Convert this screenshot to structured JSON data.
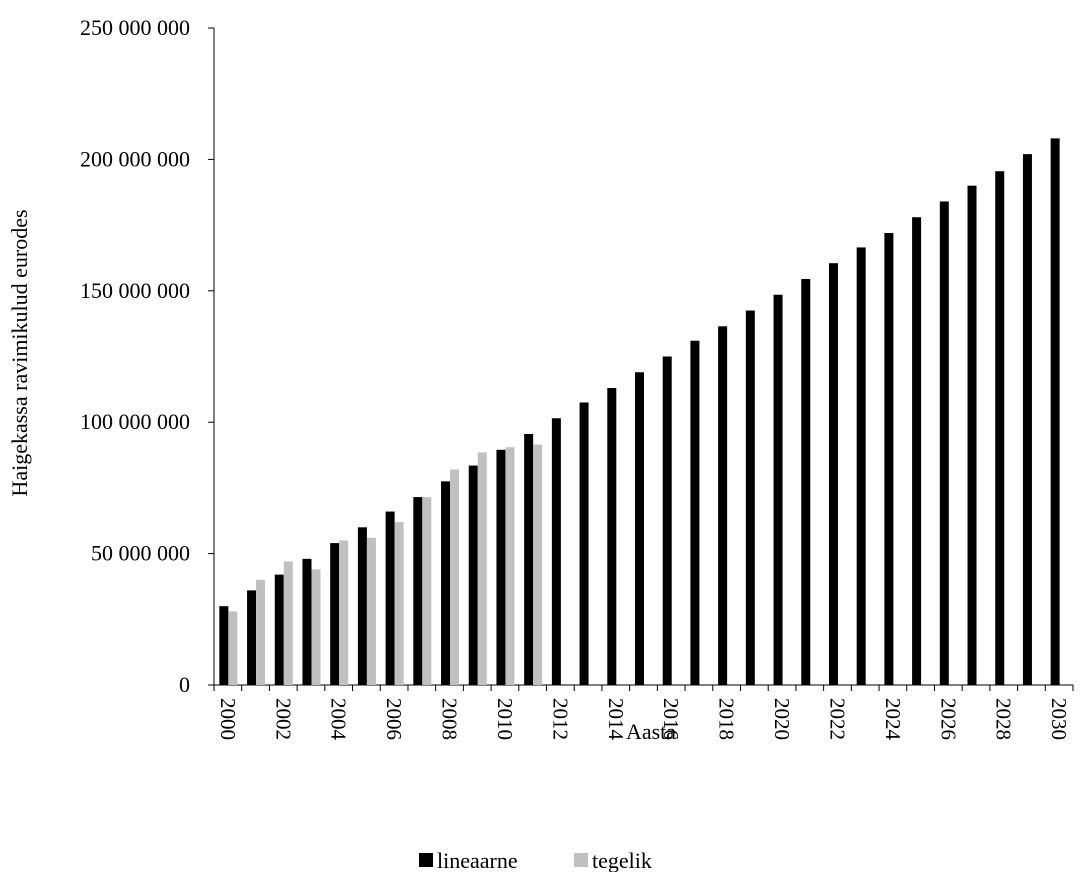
{
  "chart_data": {
    "type": "bar",
    "title": "",
    "xlabel": "Aasta",
    "ylabel": "Haigekassa ravimikulud eurodes",
    "ylim": [
      0,
      250000000
    ],
    "yticks": [
      0,
      50000000,
      100000000,
      150000000,
      200000000,
      250000000
    ],
    "ytick_labels": [
      "0",
      "50 000 000",
      "100 000 000",
      "150 000 000",
      "200 000 000",
      "250 000 000"
    ],
    "categories": [
      2000,
      2001,
      2002,
      2003,
      2004,
      2005,
      2006,
      2007,
      2008,
      2009,
      2010,
      2011,
      2012,
      2013,
      2014,
      2015,
      2016,
      2017,
      2018,
      2019,
      2020,
      2021,
      2022,
      2023,
      2024,
      2025,
      2026,
      2027,
      2028,
      2029,
      2030
    ],
    "xtick_labels": [
      "2000",
      "2002",
      "2004",
      "2006",
      "2008",
      "2010",
      "2012",
      "2014",
      "2016",
      "2018",
      "2020",
      "2022",
      "2024",
      "2026",
      "2028",
      "2030"
    ],
    "series": [
      {
        "name": "lineaarne",
        "color": "#000000",
        "values": [
          30000000,
          36000000,
          42000000,
          48000000,
          54000000,
          60000000,
          66000000,
          71500000,
          77500000,
          83500000,
          89500000,
          95500000,
          101500000,
          107500000,
          113000000,
          119000000,
          125000000,
          131000000,
          136500000,
          142500000,
          148500000,
          154500000,
          160500000,
          166500000,
          172000000,
          178000000,
          184000000,
          190000000,
          195500000,
          202000000,
          208000000
        ]
      },
      {
        "name": "tegelik",
        "color": "#c0c0c0",
        "values": [
          28000000,
          40000000,
          47000000,
          44000000,
          55000000,
          56000000,
          62000000,
          71500000,
          82000000,
          88500000,
          90500000,
          91500000,
          null,
          null,
          null,
          null,
          null,
          null,
          null,
          null,
          null,
          null,
          null,
          null,
          null,
          null,
          null,
          null,
          null,
          null,
          null
        ]
      }
    ],
    "grid": false,
    "legend_position": "bottom"
  }
}
